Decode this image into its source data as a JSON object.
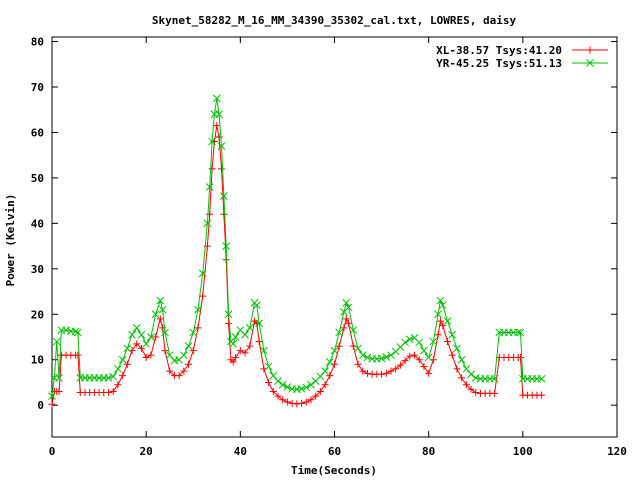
{
  "chart_data": {
    "type": "line",
    "title": "Skynet_58282_M_16_MM_34390_35302_cal.txt, LOWRES, daisy",
    "xlabel": "Time(Seconds)",
    "ylabel": "Power (Kelvin)",
    "xlim": [
      0,
      120
    ],
    "ylim": [
      -7,
      81
    ],
    "xticks": [
      0,
      20,
      40,
      60,
      80,
      100,
      120
    ],
    "yticks": [
      0,
      10,
      20,
      30,
      40,
      50,
      60,
      70,
      80
    ],
    "grid": false,
    "legend_position": "top-right",
    "series": [
      {
        "name": "XL-38.57 Tsys:41.20",
        "color": "#ff0000",
        "marker": "plus",
        "points": [
          [
            0.0,
            0.2
          ],
          [
            0.5,
            3.0
          ],
          [
            1.0,
            3.0
          ],
          [
            1.5,
            3.0
          ],
          [
            2.0,
            11.0
          ],
          [
            3.0,
            11.0
          ],
          [
            4.0,
            11.0
          ],
          [
            5.0,
            11.0
          ],
          [
            5.5,
            11.0
          ],
          [
            6.0,
            2.8
          ],
          [
            7.0,
            2.8
          ],
          [
            8.0,
            2.8
          ],
          [
            9.0,
            2.8
          ],
          [
            10.0,
            2.8
          ],
          [
            11.0,
            2.8
          ],
          [
            12.0,
            2.8
          ],
          [
            13.0,
            3.0
          ],
          [
            14.0,
            4.5
          ],
          [
            15.0,
            6.5
          ],
          [
            16.0,
            9.0
          ],
          [
            17.0,
            12.0
          ],
          [
            18.0,
            13.5
          ],
          [
            19.0,
            12.5
          ],
          [
            20.0,
            10.5
          ],
          [
            21.0,
            11.0
          ],
          [
            22.0,
            15.0
          ],
          [
            23.0,
            19.0
          ],
          [
            23.5,
            17.0
          ],
          [
            24.0,
            12.0
          ],
          [
            25.0,
            7.5
          ],
          [
            26.0,
            6.5
          ],
          [
            27.0,
            6.5
          ],
          [
            28.0,
            7.5
          ],
          [
            29.0,
            9.0
          ],
          [
            30.0,
            12.0
          ],
          [
            31.0,
            17.0
          ],
          [
            32.0,
            24.0
          ],
          [
            33.0,
            35.0
          ],
          [
            33.5,
            42.0
          ],
          [
            34.0,
            52.0
          ],
          [
            34.5,
            58.0
          ],
          [
            35.0,
            61.5
          ],
          [
            35.5,
            59.0
          ],
          [
            36.0,
            52.0
          ],
          [
            36.5,
            42.0
          ],
          [
            37.0,
            32.0
          ],
          [
            37.5,
            18.0
          ],
          [
            38.0,
            10.0
          ],
          [
            38.5,
            9.5
          ],
          [
            39.0,
            10.5
          ],
          [
            40.0,
            12.0
          ],
          [
            41.0,
            11.5
          ],
          [
            42.0,
            13.0
          ],
          [
            43.0,
            18.5
          ],
          [
            43.5,
            18.0
          ],
          [
            44.0,
            14.0
          ],
          [
            45.0,
            8.0
          ],
          [
            46.0,
            5.0
          ],
          [
            47.0,
            3.0
          ],
          [
            48.0,
            2.0
          ],
          [
            49.0,
            1.2
          ],
          [
            50.0,
            0.7
          ],
          [
            51.0,
            0.4
          ],
          [
            52.0,
            0.3
          ],
          [
            53.0,
            0.4
          ],
          [
            54.0,
            0.7
          ],
          [
            55.0,
            1.2
          ],
          [
            56.0,
            2.0
          ],
          [
            57.0,
            3.0
          ],
          [
            58.0,
            4.5
          ],
          [
            59.0,
            6.5
          ],
          [
            60.0,
            9.0
          ],
          [
            61.0,
            13.0
          ],
          [
            62.0,
            17.0
          ],
          [
            62.5,
            19.0
          ],
          [
            63.0,
            18.0
          ],
          [
            64.0,
            13.0
          ],
          [
            65.0,
            9.0
          ],
          [
            66.0,
            7.5
          ],
          [
            67.0,
            7.0
          ],
          [
            68.0,
            6.8
          ],
          [
            69.0,
            6.8
          ],
          [
            70.0,
            6.8
          ],
          [
            71.0,
            7.0
          ],
          [
            72.0,
            7.5
          ],
          [
            73.0,
            8.0
          ],
          [
            74.0,
            8.8
          ],
          [
            75.0,
            9.8
          ],
          [
            76.0,
            10.8
          ],
          [
            77.0,
            11.0
          ],
          [
            78.0,
            10.0
          ],
          [
            79.0,
            8.5
          ],
          [
            80.0,
            7.0
          ],
          [
            81.0,
            10.0
          ],
          [
            82.0,
            15.5
          ],
          [
            82.5,
            18.5
          ],
          [
            83.0,
            17.5
          ],
          [
            84.0,
            14.0
          ],
          [
            85.0,
            11.0
          ],
          [
            86.0,
            8.0
          ],
          [
            87.0,
            6.0
          ],
          [
            88.0,
            4.5
          ],
          [
            89.0,
            3.5
          ],
          [
            90.0,
            2.8
          ],
          [
            91.0,
            2.6
          ],
          [
            92.0,
            2.6
          ],
          [
            93.0,
            2.6
          ],
          [
            94.0,
            2.6
          ],
          [
            95.0,
            10.5
          ],
          [
            96.0,
            10.5
          ],
          [
            97.0,
            10.5
          ],
          [
            98.0,
            10.5
          ],
          [
            99.0,
            10.5
          ],
          [
            99.5,
            10.5
          ],
          [
            100.0,
            2.2
          ],
          [
            101.0,
            2.2
          ],
          [
            102.0,
            2.2
          ],
          [
            103.0,
            2.2
          ],
          [
            104.0,
            2.2
          ]
        ]
      },
      {
        "name": "YR-45.25 Tsys:51.13",
        "color": "#00c000",
        "marker": "cross",
        "points": [
          [
            0.0,
            2.0
          ],
          [
            0.5,
            6.0
          ],
          [
            1.0,
            14.0
          ],
          [
            1.5,
            6.0
          ],
          [
            2.0,
            16.5
          ],
          [
            3.0,
            16.5
          ],
          [
            4.0,
            16.3
          ],
          [
            5.0,
            16.2
          ],
          [
            5.5,
            16.0
          ],
          [
            6.0,
            6.0
          ],
          [
            7.0,
            6.0
          ],
          [
            8.0,
            6.0
          ],
          [
            9.0,
            6.0
          ],
          [
            10.0,
            6.0
          ],
          [
            11.0,
            6.0
          ],
          [
            12.0,
            6.0
          ],
          [
            13.0,
            6.3
          ],
          [
            14.0,
            8.0
          ],
          [
            15.0,
            10.0
          ],
          [
            16.0,
            12.5
          ],
          [
            17.0,
            15.5
          ],
          [
            18.0,
            17.0
          ],
          [
            19.0,
            15.5
          ],
          [
            20.0,
            13.5
          ],
          [
            21.0,
            15.0
          ],
          [
            22.0,
            20.0
          ],
          [
            23.0,
            23.0
          ],
          [
            23.5,
            21.0
          ],
          [
            24.0,
            16.0
          ],
          [
            25.0,
            11.0
          ],
          [
            26.0,
            9.8
          ],
          [
            27.0,
            10.0
          ],
          [
            28.0,
            11.0
          ],
          [
            29.0,
            13.0
          ],
          [
            30.0,
            16.0
          ],
          [
            31.0,
            21.0
          ],
          [
            32.0,
            29.0
          ],
          [
            33.0,
            40.0
          ],
          [
            33.5,
            48.0
          ],
          [
            34.0,
            58.0
          ],
          [
            34.5,
            64.0
          ],
          [
            35.0,
            67.5
          ],
          [
            35.5,
            64.0
          ],
          [
            36.0,
            57.0
          ],
          [
            36.5,
            46.0
          ],
          [
            37.0,
            35.0
          ],
          [
            37.5,
            20.0
          ],
          [
            38.0,
            14.0
          ],
          [
            38.5,
            13.5
          ],
          [
            39.0,
            15.0
          ],
          [
            40.0,
            16.5
          ],
          [
            41.0,
            15.5
          ],
          [
            42.0,
            17.0
          ],
          [
            43.0,
            22.5
          ],
          [
            43.5,
            22.0
          ],
          [
            44.0,
            18.0
          ],
          [
            45.0,
            12.0
          ],
          [
            46.0,
            8.5
          ],
          [
            47.0,
            6.5
          ],
          [
            48.0,
            5.3
          ],
          [
            49.0,
            4.5
          ],
          [
            50.0,
            4.0
          ],
          [
            51.0,
            3.6
          ],
          [
            52.0,
            3.5
          ],
          [
            53.0,
            3.6
          ],
          [
            54.0,
            3.9
          ],
          [
            55.0,
            4.5
          ],
          [
            56.0,
            5.3
          ],
          [
            57.0,
            6.3
          ],
          [
            58.0,
            7.5
          ],
          [
            59.0,
            9.5
          ],
          [
            60.0,
            12.0
          ],
          [
            61.0,
            16.0
          ],
          [
            62.0,
            20.5
          ],
          [
            62.5,
            22.5
          ],
          [
            63.0,
            21.5
          ],
          [
            64.0,
            16.5
          ],
          [
            65.0,
            12.5
          ],
          [
            66.0,
            11.0
          ],
          [
            67.0,
            10.5
          ],
          [
            68.0,
            10.2
          ],
          [
            69.0,
            10.2
          ],
          [
            70.0,
            10.3
          ],
          [
            71.0,
            10.6
          ],
          [
            72.0,
            11.0
          ],
          [
            73.0,
            11.8
          ],
          [
            74.0,
            12.8
          ],
          [
            75.0,
            13.8
          ],
          [
            76.0,
            14.5
          ],
          [
            77.0,
            14.8
          ],
          [
            78.0,
            13.8
          ],
          [
            79.0,
            12.0
          ],
          [
            80.0,
            10.5
          ],
          [
            81.0,
            14.0
          ],
          [
            82.0,
            20.0
          ],
          [
            82.5,
            23.0
          ],
          [
            83.0,
            22.0
          ],
          [
            84.0,
            18.5
          ],
          [
            85.0,
            15.5
          ],
          [
            86.0,
            12.5
          ],
          [
            87.0,
            10.0
          ],
          [
            88.0,
            8.0
          ],
          [
            89.0,
            6.8
          ],
          [
            90.0,
            6.0
          ],
          [
            91.0,
            5.8
          ],
          [
            92.0,
            5.8
          ],
          [
            93.0,
            5.8
          ],
          [
            94.0,
            5.8
          ],
          [
            95.0,
            16.0
          ],
          [
            96.0,
            16.0
          ],
          [
            97.0,
            16.0
          ],
          [
            98.0,
            16.0
          ],
          [
            99.0,
            16.0
          ],
          [
            99.5,
            16.0
          ],
          [
            100.0,
            5.8
          ],
          [
            101.0,
            5.8
          ],
          [
            102.0,
            5.8
          ],
          [
            103.0,
            5.8
          ],
          [
            104.0,
            5.8
          ]
        ]
      }
    ]
  }
}
